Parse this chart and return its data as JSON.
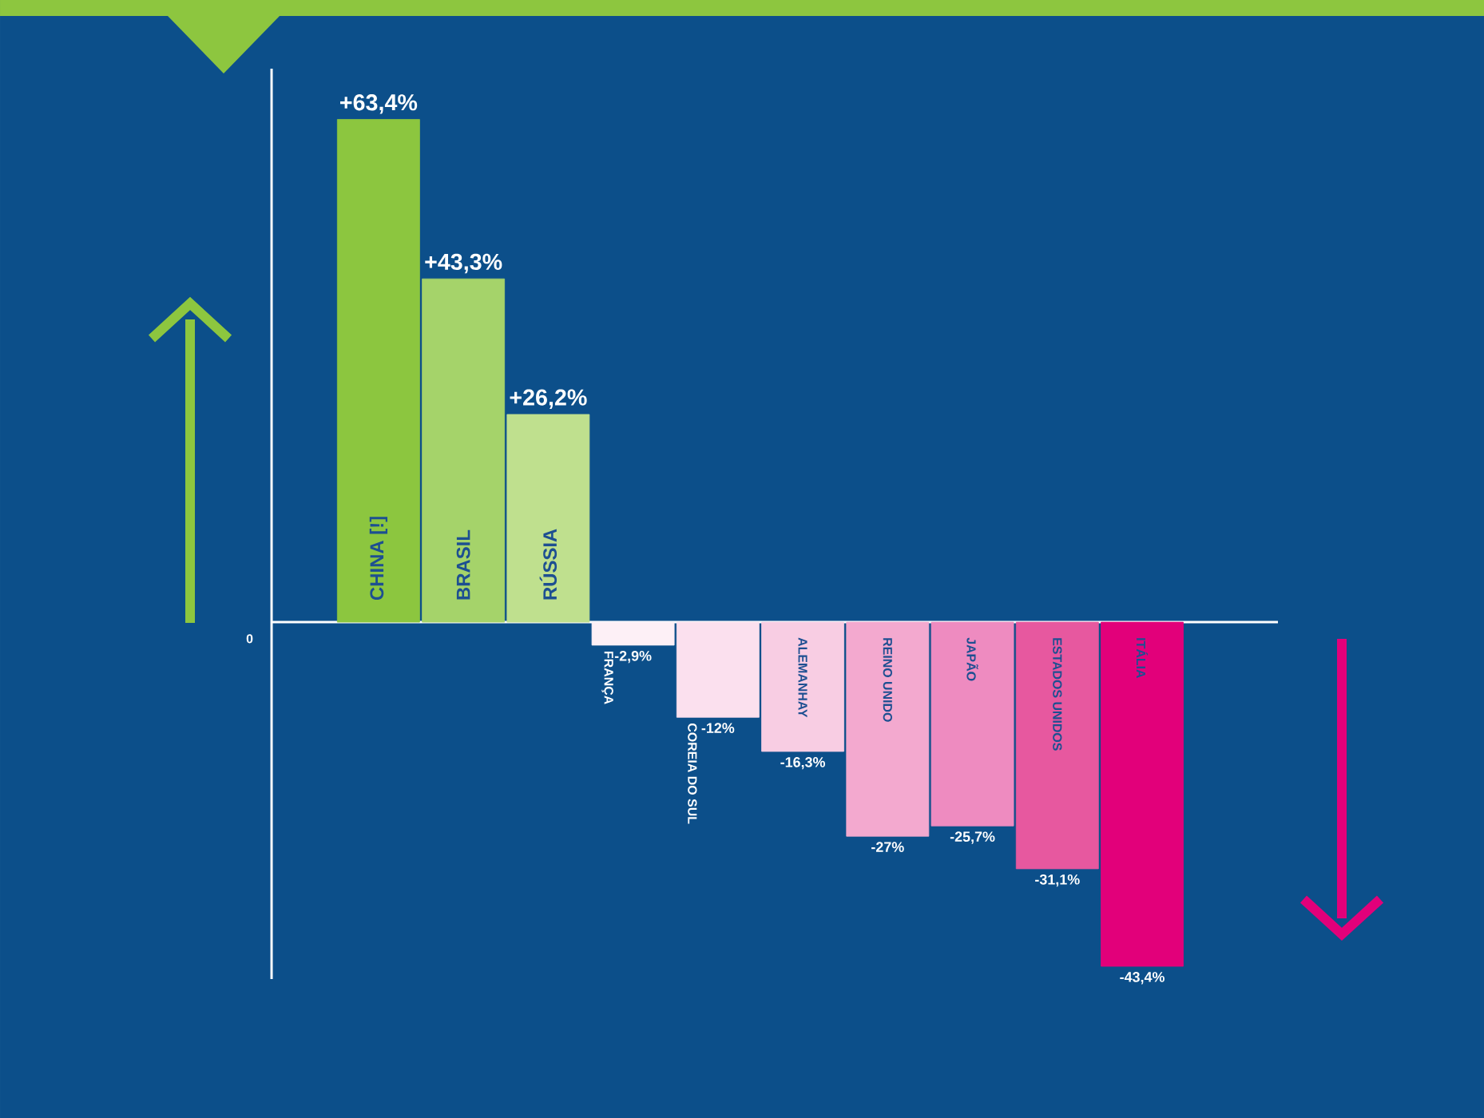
{
  "chart_data": {
    "type": "bar",
    "categories": [
      "CHINA [!]",
      "BRASIL",
      "RÚSSIA",
      "FRANÇA",
      "COREIA DO SUL",
      "ALEMANHAY",
      "REINO UNIDO",
      "JAPÃO",
      "ESTADOS UNIDOS",
      "ITÁLIA"
    ],
    "values": [
      63.4,
      43.3,
      26.2,
      -2.9,
      -12,
      -16.3,
      -27,
      -25.7,
      -31.1,
      -43.4
    ],
    "value_labels": [
      "+63,4%",
      "+43,3%",
      "+26,2%",
      "-2,9%",
      "-12%",
      "-16,3%",
      "-27%",
      "-25,7%",
      "-31,1%",
      "-43,4%"
    ],
    "colors": [
      "#8cc63f",
      "#a5d36a",
      "#bfe08e",
      "#fdf0f6",
      "#fbe0ee",
      "#f8cde3",
      "#f3a9cf",
      "#ee8bc0",
      "#e7589f",
      "#e2007a"
    ],
    "annotations": [
      "0"
    ]
  }
}
